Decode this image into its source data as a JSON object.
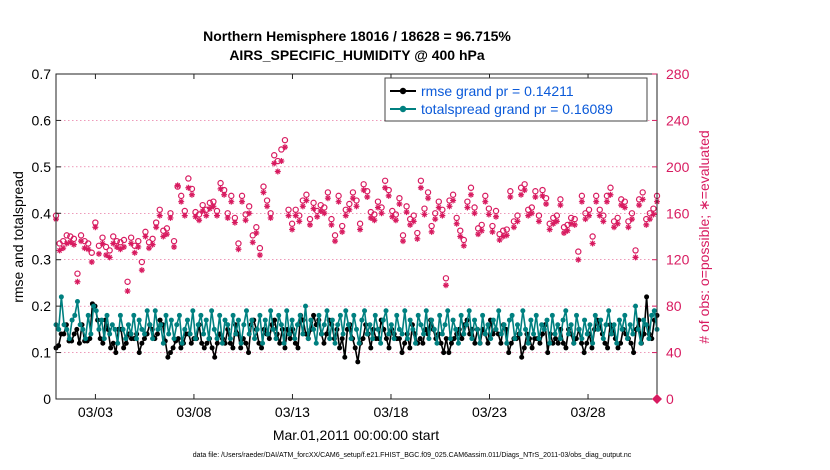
{
  "chart_data": {
    "type": "line",
    "title_line1": "Northern Hemisphere 18016 / 18628 = 96.715%",
    "title_line2": "AIRS_SPECIFIC_HUMIDITY @ 400 hPa",
    "xlabel": "Mar.01,2011 00:00:00 start",
    "ylabel_left": "rmse and totalspread",
    "ylabel_right": "# of obs: o=possible; ∗=evaluated",
    "footer": "data file: /Users/raeder/DAI/ATM_forcXX/CAM6_setup/f.e21.FHIST_BGC.f09_025.CAM6assim.011/Diags_NTrS_2011-03/obs_diag_output.nc",
    "xlim": [
      1,
      31.5
    ],
    "ylim_left": [
      0,
      0.7
    ],
    "ylim_right": [
      0,
      280
    ],
    "x_ticks": [
      3,
      8,
      13,
      18,
      23,
      28
    ],
    "x_tick_labels": [
      "03/03",
      "03/08",
      "03/13",
      "03/18",
      "03/23",
      "03/28"
    ],
    "y_ticks_left": [
      0,
      0.1,
      0.2,
      0.3,
      0.4,
      0.5,
      0.6,
      0.7
    ],
    "y_tick_labels_left": [
      "0",
      "0.1",
      "0.2",
      "0.3",
      "0.4",
      "0.5",
      "0.6",
      "0.7"
    ],
    "y_ticks_right": [
      0,
      40,
      80,
      120,
      160,
      200,
      240,
      280
    ],
    "y_tick_labels_right": [
      "0",
      "40",
      "80",
      "120",
      "160",
      "200",
      "240",
      "280"
    ],
    "colors": {
      "rmse": "#000000",
      "spread": "#008080",
      "obs": "#d81b60",
      "legend_text": "#0b5ad9"
    },
    "series": [
      {
        "name": "rmse",
        "legend": "rmse grand pr = 0.14211",
        "axis": "left",
        "color": "#000000",
        "marker": "o",
        "values": [
          0.11,
          0.115,
          0.14,
          0.14,
          0.16,
          0.125,
          0.125,
          0.14,
          0.15,
          0.12,
          0.16,
          0.125,
          0.125,
          0.13,
          0.205,
          0.2,
          0.17,
          0.13,
          0.12,
          0.17,
          0.15,
          0.11,
          0.12,
          0.1,
          0.15,
          0.15,
          0.11,
          0.12,
          0.14,
          0.13,
          0.13,
          0.14,
          0.1,
          0.12,
          0.13,
          0.14,
          0.16,
          0.15,
          0.13,
          0.14,
          0.17,
          0.16,
          0.125,
          0.09,
          0.1,
          0.11,
          0.125,
          0.13,
          0.11,
          0.12,
          0.14,
          0.14,
          0.12,
          0.13,
          0.13,
          0.16,
          0.12,
          0.11,
          0.12,
          0.13,
          0.11,
          0.09,
          0.12,
          0.14,
          0.13,
          0.12,
          0.15,
          0.12,
          0.11,
          0.16,
          0.14,
          0.11,
          0.13,
          0.12,
          0.1,
          0.16,
          0.17,
          0.15,
          0.12,
          0.11,
          0.15,
          0.14,
          0.13,
          0.16,
          0.17,
          0.14,
          0.12,
          0.15,
          0.11,
          0.15,
          0.13,
          0.15,
          0.12,
          0.11,
          0.18,
          0.17,
          0.14,
          0.13,
          0.15,
          0.18,
          0.16,
          0.17,
          0.14,
          0.12,
          0.14,
          0.17,
          0.16,
          0.13,
          0.15,
          0.11,
          0.13,
          0.09,
          0.15,
          0.16,
          0.13,
          0.11,
          0.08,
          0.12,
          0.13,
          0.16,
          0.14,
          0.11,
          0.15,
          0.13,
          0.13,
          0.17,
          0.15,
          0.13,
          0.11,
          0.15,
          0.14,
          0.13,
          0.13,
          0.1,
          0.12,
          0.14,
          0.11,
          0.16,
          0.14,
          0.12,
          0.13,
          0.12,
          0.15,
          0.14,
          0.17,
          0.15,
          0.13,
          0.14,
          0.12,
          0.1,
          0.13,
          0.1,
          0.12,
          0.13,
          0.14,
          0.15,
          0.13,
          0.16,
          0.17,
          0.14,
          0.15,
          0.12,
          0.15,
          0.12,
          0.15,
          0.14,
          0.12,
          0.17,
          0.14,
          0.15,
          0.14,
          0.12,
          0.16,
          0.15,
          0.1,
          0.12,
          0.13,
          0.13,
          0.14,
          0.09,
          0.11,
          0.14,
          0.13,
          0.11,
          0.13,
          0.13,
          0.12,
          0.14,
          0.16,
          0.1,
          0.14,
          0.12,
          0.13,
          0.12,
          0.15,
          0.12,
          0.11,
          0.15,
          0.14,
          0.12,
          0.13,
          0.15,
          0.12,
          0.1,
          0.12,
          0.14,
          0.11,
          0.15,
          0.17,
          0.16,
          0.14,
          0.12,
          0.11,
          0.16,
          0.15,
          0.13,
          0.11,
          0.12,
          0.15,
          0.14,
          0.13,
          0.12,
          0.1,
          0.15,
          0.17,
          0.12,
          0.14,
          0.22,
          0.14,
          0.13,
          0.17,
          0.18
        ]
      },
      {
        "name": "totalspread",
        "legend": "totalspread grand pr = 0.16089",
        "axis": "left",
        "color": "#008080",
        "marker": "o",
        "values": [
          0.16,
          0.15,
          0.22,
          0.16,
          0.15,
          0.13,
          0.17,
          0.18,
          0.21,
          0.16,
          0.15,
          0.13,
          0.18,
          0.14,
          0.2,
          0.19,
          0.15,
          0.17,
          0.13,
          0.18,
          0.14,
          0.16,
          0.15,
          0.12,
          0.18,
          0.15,
          0.13,
          0.16,
          0.14,
          0.18,
          0.13,
          0.17,
          0.15,
          0.14,
          0.19,
          0.16,
          0.13,
          0.19,
          0.15,
          0.16,
          0.12,
          0.18,
          0.14,
          0.17,
          0.13,
          0.16,
          0.18,
          0.12,
          0.15,
          0.17,
          0.14,
          0.19,
          0.13,
          0.16,
          0.18,
          0.14,
          0.17,
          0.13,
          0.19,
          0.15,
          0.13,
          0.18,
          0.12,
          0.17,
          0.16,
          0.13,
          0.18,
          0.14,
          0.17,
          0.12,
          0.16,
          0.19,
          0.14,
          0.17,
          0.13,
          0.15,
          0.18,
          0.12,
          0.17,
          0.14,
          0.19,
          0.15,
          0.13,
          0.18,
          0.16,
          0.12,
          0.19,
          0.14,
          0.17,
          0.13,
          0.16,
          0.18,
          0.14,
          0.2,
          0.13,
          0.17,
          0.15,
          0.12,
          0.18,
          0.14,
          0.16,
          0.19,
          0.13,
          0.17,
          0.12,
          0.16,
          0.18,
          0.14,
          0.19,
          0.16,
          0.13,
          0.18,
          0.15,
          0.12,
          0.17,
          0.19,
          0.14,
          0.16,
          0.13,
          0.18,
          0.15,
          0.12,
          0.17,
          0.19,
          0.14,
          0.16,
          0.13,
          0.18,
          0.15,
          0.14,
          0.19,
          0.13,
          0.17,
          0.15,
          0.12,
          0.18,
          0.16,
          0.14,
          0.19,
          0.13,
          0.17,
          0.15,
          0.12,
          0.18,
          0.14,
          0.16,
          0.19,
          0.13,
          0.17,
          0.15,
          0.12,
          0.18,
          0.14,
          0.16,
          0.19,
          0.13,
          0.17,
          0.15,
          0.12,
          0.18,
          0.14,
          0.16,
          0.13,
          0.17,
          0.15,
          0.19,
          0.14,
          0.16,
          0.12,
          0.17,
          0.18,
          0.13,
          0.16,
          0.14,
          0.19,
          0.15,
          0.12,
          0.17,
          0.14,
          0.18,
          0.13,
          0.16,
          0.15,
          0.17,
          0.12,
          0.18,
          0.14,
          0.16,
          0.13,
          0.17,
          0.19,
          0.14,
          0.16,
          0.12,
          0.18,
          0.15,
          0.13,
          0.17,
          0.14,
          0.16,
          0.12,
          0.18,
          0.15,
          0.17,
          0.13,
          0.16,
          0.19,
          0.14,
          0.16,
          0.12,
          0.17,
          0.15,
          0.18,
          0.13,
          0.16,
          0.14,
          0.2,
          0.15,
          0.12,
          0.17,
          0.16,
          0.13,
          0.18,
          0.19,
          0.15
        ]
      },
      {
        "name": "possible",
        "legend": "o=possible",
        "axis": "right",
        "color": "#d81b60",
        "marker": "circle-open",
        "values": [
          158,
          134,
          136,
          141,
          140,
          138,
          108,
          141,
          136,
          134,
          126,
          152,
          132,
          139,
          131,
          128,
          140,
          136,
          135,
          137,
          101,
          139,
          132,
          136,
          118,
          144,
          135,
          138,
          152,
          163,
          145,
          147,
          160,
          136,
          183,
          175,
          162,
          190,
          181,
          161,
          159,
          167,
          163,
          169,
          170,
          162,
          186,
          180,
          160,
          175,
          156,
          134,
          175,
          159,
          166,
          141,
          148,
          130,
          183,
          171,
          160,
          210,
          205,
          215,
          223,
          163,
          151,
          163,
          158,
          171,
          176,
          155,
          169,
          162,
          167,
          165,
          178,
          155,
          141,
          175,
          149,
          163,
          168,
          178,
          171,
          151,
          185,
          179,
          161,
          159,
          170,
          165,
          188,
          180,
          162,
          159,
          173,
          141,
          166,
          155,
          158,
          143,
          188,
          164,
          178,
          149,
          160,
          170,
          163,
          104,
          171,
          176,
          156,
          145,
          137,
          170,
          182,
          165,
          147,
          150,
          175,
          164,
          149,
          162,
          142,
          145,
          146,
          179,
          153,
          158,
          182,
          185,
          163,
          165,
          179,
          158,
          180,
          173,
          151,
          156,
          158,
          172,
          148,
          150,
          156,
          155,
          127,
          175,
          160,
          163,
          140,
          175,
          163,
          158,
          175,
          182,
          153,
          156,
          172,
          170,
          153,
          160,
          128,
          172,
          178,
          155,
          160,
          164,
          175
        ]
      },
      {
        "name": "evaluated",
        "legend": "∗=evaluated",
        "axis": "right",
        "color": "#d81b60",
        "marker": "asterisk",
        "values": [
          155,
          128,
          130,
          134,
          135,
          133,
          101,
          136,
          130,
          129,
          118,
          148,
          125,
          134,
          124,
          122,
          134,
          131,
          129,
          131,
          93,
          134,
          126,
          131,
          111,
          140,
          130,
          133,
          148,
          158,
          140,
          142,
          156,
          131,
          184,
          170,
          158,
          182,
          176,
          157,
          154,
          162,
          158,
          164,
          166,
          158,
          181,
          176,
          156,
          170,
          152,
          129,
          170,
          154,
          160,
          135,
          143,
          124,
          178,
          166,
          156,
          203,
          196,
          205,
          217,
          158,
          146,
          158,
          153,
          166,
          171,
          150,
          164,
          157,
          162,
          160,
          173,
          150,
          136,
          170,
          144,
          158,
          163,
          173,
          166,
          146,
          180,
          174,
          156,
          154,
          165,
          160,
          182,
          175,
          157,
          154,
          168,
          136,
          161,
          150,
          153,
          138,
          182,
          159,
          173,
          144,
          155,
          165,
          158,
          98,
          166,
          171,
          151,
          140,
          132,
          165,
          176,
          160,
          142,
          145,
          170,
          159,
          144,
          157,
          137,
          140,
          141,
          174,
          148,
          153,
          176,
          180,
          158,
          160,
          174,
          153,
          175,
          168,
          146,
          151,
          153,
          167,
          143,
          145,
          151,
          150,
          120,
          170,
          155,
          158,
          134,
          170,
          158,
          153,
          170,
          176,
          148,
          151,
          167,
          165,
          148,
          155,
          122,
          167,
          172,
          150,
          155,
          159,
          170
        ]
      }
    ]
  }
}
